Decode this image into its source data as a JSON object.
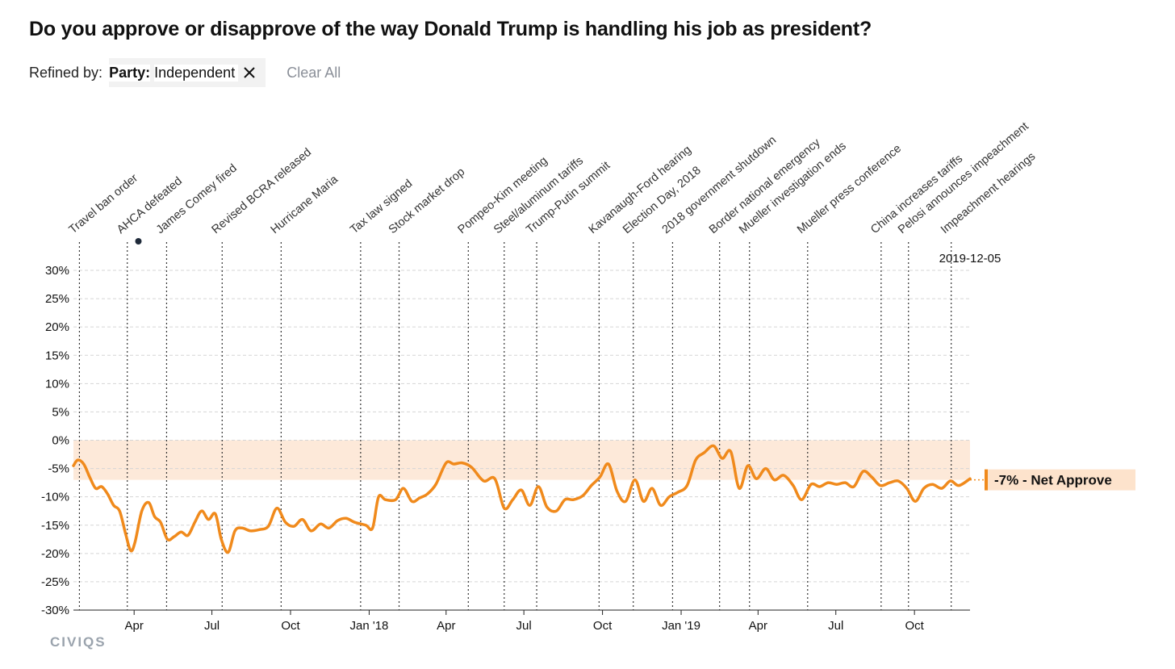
{
  "page": {
    "title": "Do you approve or disapprove of the way Donald Trump is handling his job as president?",
    "refined_by_label": "Refined by:",
    "filter_key": "Party:",
    "filter_value": "Independent",
    "clear_all_label": "Clear All",
    "brand": "CIVIQS",
    "close_icon": "close-icon"
  },
  "colors": {
    "series": "#f08a1c",
    "band": "#fde9d9",
    "grid": "#d5d5d5",
    "event_line": "#333333",
    "badge_bg": "#fde3cc"
  },
  "chart_data": {
    "type": "line",
    "title": "Do you approve or disapprove of the way Donald Trump is handling his job as president?",
    "xlabel": "",
    "ylabel": "",
    "y_unit": "%",
    "ylim": [
      -30,
      30
    ],
    "y_ticks": [
      30,
      25,
      20,
      15,
      10,
      5,
      0,
      -5,
      -10,
      -15,
      -20,
      -25,
      -30
    ],
    "y_tick_labels": [
      "30%",
      "25%",
      "20%",
      "15%",
      "10%",
      "5%",
      "0%",
      "-5%",
      "-10%",
      "-15%",
      "-20%",
      "-25%",
      "-30%"
    ],
    "xlim": [
      "2017-01-20",
      "2019-12-05"
    ],
    "x_ticks": [
      {
        "date": "2017-04-01",
        "label": "Apr"
      },
      {
        "date": "2017-07-01",
        "label": "Jul"
      },
      {
        "date": "2017-10-01",
        "label": "Oct"
      },
      {
        "date": "2018-01-01",
        "label": "Jan '18"
      },
      {
        "date": "2018-04-01",
        "label": "Apr"
      },
      {
        "date": "2018-07-01",
        "label": "Jul"
      },
      {
        "date": "2018-10-01",
        "label": "Oct"
      },
      {
        "date": "2019-01-01",
        "label": "Jan '19"
      },
      {
        "date": "2019-04-01",
        "label": "Apr"
      },
      {
        "date": "2019-07-01",
        "label": "Jul"
      },
      {
        "date": "2019-10-01",
        "label": "Oct"
      }
    ],
    "grid": true,
    "shaded_band": [
      -7,
      0
    ],
    "series": [
      {
        "name": "Net Approve",
        "x": [
          "2017-01-20",
          "2017-01-25",
          "2017-02-01",
          "2017-02-08",
          "2017-02-15",
          "2017-02-22",
          "2017-03-01",
          "2017-03-08",
          "2017-03-15",
          "2017-03-22",
          "2017-03-28",
          "2017-04-02",
          "2017-04-10",
          "2017-04-18",
          "2017-04-25",
          "2017-05-02",
          "2017-05-10",
          "2017-05-18",
          "2017-05-26",
          "2017-06-03",
          "2017-06-11",
          "2017-06-19",
          "2017-06-27",
          "2017-07-05",
          "2017-07-12",
          "2017-07-20",
          "2017-07-28",
          "2017-08-05",
          "2017-08-15",
          "2017-08-25",
          "2017-09-05",
          "2017-09-15",
          "2017-09-25",
          "2017-10-05",
          "2017-10-15",
          "2017-10-25",
          "2017-11-05",
          "2017-11-15",
          "2017-11-25",
          "2017-12-05",
          "2017-12-15",
          "2017-12-28",
          "2018-01-05",
          "2018-01-12",
          "2018-01-20",
          "2018-02-01",
          "2018-02-10",
          "2018-02-20",
          "2018-03-01",
          "2018-03-10",
          "2018-03-20",
          "2018-04-01",
          "2018-04-10",
          "2018-04-20",
          "2018-05-01",
          "2018-05-15",
          "2018-05-28",
          "2018-06-08",
          "2018-06-18",
          "2018-06-28",
          "2018-07-08",
          "2018-07-18",
          "2018-07-28",
          "2018-08-08",
          "2018-08-18",
          "2018-08-28",
          "2018-09-08",
          "2018-09-18",
          "2018-09-28",
          "2018-10-08",
          "2018-10-18",
          "2018-10-28",
          "2018-11-08",
          "2018-11-18",
          "2018-11-28",
          "2018-12-08",
          "2018-12-18",
          "2018-12-28",
          "2019-01-08",
          "2019-01-18",
          "2019-01-28",
          "2019-02-08",
          "2019-02-18",
          "2019-02-28",
          "2019-03-10",
          "2019-03-20",
          "2019-03-30",
          "2019-04-10",
          "2019-04-20",
          "2019-05-01",
          "2019-05-12",
          "2019-05-22",
          "2019-06-02",
          "2019-06-12",
          "2019-06-22",
          "2019-07-02",
          "2019-07-12",
          "2019-07-22",
          "2019-08-02",
          "2019-08-12",
          "2019-08-22",
          "2019-09-02",
          "2019-09-12",
          "2019-09-22",
          "2019-10-02",
          "2019-10-12",
          "2019-10-22",
          "2019-11-02",
          "2019-11-12",
          "2019-11-22",
          "2019-12-05"
        ],
        "y": [
          -4.5,
          -3.5,
          -4.2,
          -6.5,
          -8.5,
          -8.2,
          -9.5,
          -11.5,
          -12.5,
          -16.5,
          -19.5,
          -18.0,
          -12.5,
          -11.0,
          -13.5,
          -14.5,
          -17.5,
          -17.0,
          -16.2,
          -16.8,
          -14.5,
          -12.5,
          -14.0,
          -13.0,
          -17.5,
          -19.8,
          -16.0,
          -15.5,
          -16.0,
          -15.8,
          -15.2,
          -12.0,
          -14.5,
          -15.2,
          -14.0,
          -16.0,
          -14.8,
          -15.5,
          -14.2,
          -13.8,
          -14.5,
          -15.0,
          -15.5,
          -10.0,
          -10.5,
          -10.5,
          -8.5,
          -10.8,
          -10.2,
          -9.5,
          -7.8,
          -4.0,
          -4.2,
          -4.0,
          -4.8,
          -7.2,
          -6.8,
          -12.0,
          -10.5,
          -8.8,
          -11.5,
          -8.2,
          -11.8,
          -12.5,
          -10.5,
          -10.5,
          -9.8,
          -8.0,
          -6.5,
          -4.2,
          -9.0,
          -10.8,
          -7.0,
          -10.8,
          -8.5,
          -11.5,
          -10.0,
          -9.2,
          -8.0,
          -3.5,
          -2.2,
          -1.0,
          -3.2,
          -2.0,
          -8.5,
          -4.5,
          -6.8,
          -5.0,
          -7.0,
          -6.2,
          -8.0,
          -10.5,
          -7.8,
          -8.2,
          -7.5,
          -7.8,
          -7.5,
          -8.2,
          -5.5,
          -6.5,
          -8.0,
          -7.5,
          -7.2,
          -8.5,
          -10.8,
          -8.5,
          -7.8,
          -8.5,
          -7.2,
          -8.0,
          -6.8
        ]
      }
    ],
    "current": {
      "date": "2019-12-05",
      "date_label": "2019-12-05",
      "value": -7,
      "label": "-7% - Net Approve"
    },
    "events": [
      {
        "date": "2017-01-27",
        "label": "Travel ban order"
      },
      {
        "date": "2017-03-24",
        "label": "AHCA defeated"
      },
      {
        "date": "2017-05-09",
        "label": "James Comey fired"
      },
      {
        "date": "2017-07-13",
        "label": "Revised BCRA released"
      },
      {
        "date": "2017-09-20",
        "label": "Hurricane Maria"
      },
      {
        "date": "2017-12-22",
        "label": "Tax law signed"
      },
      {
        "date": "2018-02-05",
        "label": "Stock market drop"
      },
      {
        "date": "2018-04-27",
        "label": "Pompeo-Kim meeting"
      },
      {
        "date": "2018-06-08",
        "label": "Steel/aluminum tariffs"
      },
      {
        "date": "2018-07-16",
        "label": "Trump-Putin summit"
      },
      {
        "date": "2018-09-27",
        "label": "Kavanaugh-Ford hearing"
      },
      {
        "date": "2018-11-06",
        "label": "Election Day, 2018"
      },
      {
        "date": "2018-12-22",
        "label": "2018 government shutdown"
      },
      {
        "date": "2019-02-15",
        "label": "Border national emergency"
      },
      {
        "date": "2019-03-22",
        "label": "Mueller investigation ends"
      },
      {
        "date": "2019-05-29",
        "label": "Mueller press conference"
      },
      {
        "date": "2019-08-23",
        "label": "China increases tariffs"
      },
      {
        "date": "2019-09-24",
        "label": "Pelosi announces impeachment"
      },
      {
        "date": "2019-11-13",
        "label": "Impeachment hearings"
      }
    ],
    "marker": {
      "date": "2017-04-06"
    }
  }
}
